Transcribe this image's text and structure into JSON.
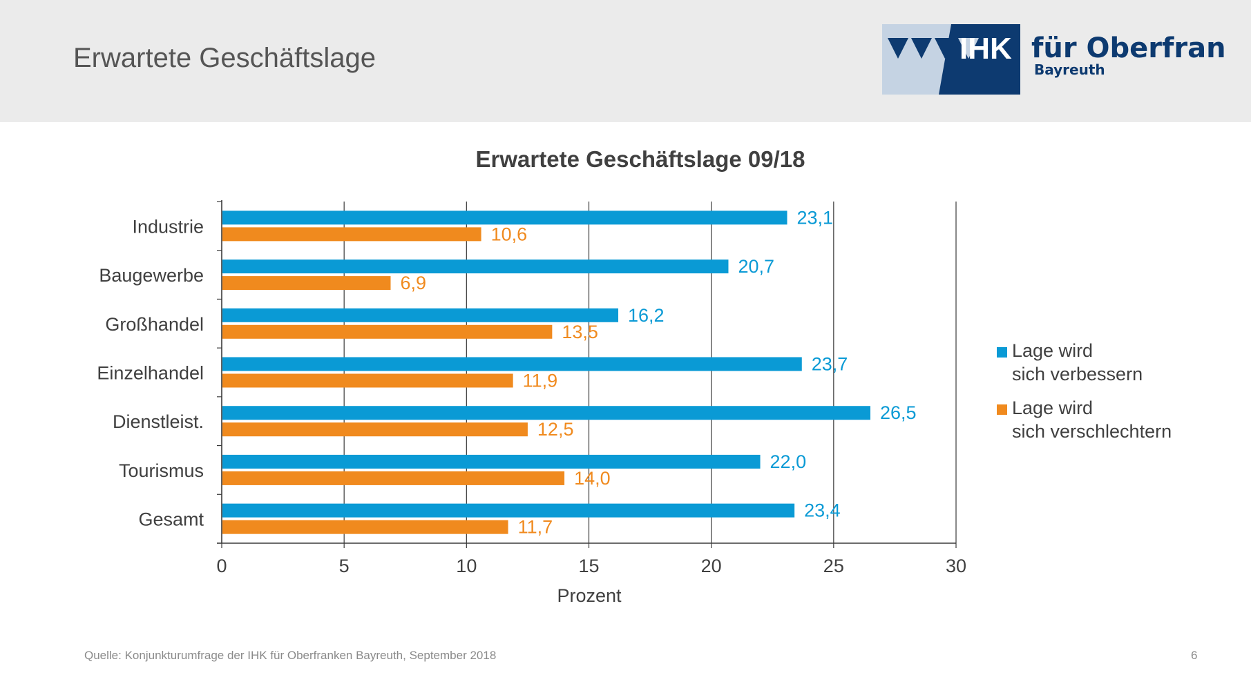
{
  "header": {
    "title": "Erwartete Geschäftslage",
    "logo": {
      "abbr": "IHK",
      "name": "für Oberfranken",
      "city": "Bayreuth"
    }
  },
  "chart_data": {
    "type": "bar",
    "orientation": "horizontal",
    "title": "Erwartete Geschäftslage 09/18",
    "xlabel": "Prozent",
    "ylabel": "",
    "xlim": [
      0,
      30
    ],
    "xticks": [
      "0",
      "5",
      "10",
      "15",
      "20",
      "25",
      "30"
    ],
    "categories": [
      "Industrie",
      "Baugewerbe",
      "Großhandel",
      "Einzelhandel",
      "Dienstleist.",
      "Tourismus",
      "Gesamt"
    ],
    "series": [
      {
        "name": "Lage wird sich verbessern",
        "legend_lines": [
          "Lage wird",
          "sich verbessern"
        ],
        "color": "#0a9ad5",
        "values": [
          23.1,
          20.7,
          16.2,
          23.7,
          26.5,
          22.0,
          23.4
        ],
        "labels": [
          "23,1",
          "20,7",
          "16,2",
          "23,7",
          "26,5",
          "22,0",
          "23,4"
        ]
      },
      {
        "name": "Lage wird sich verschlechtern",
        "legend_lines": [
          "Lage wird",
          "sich verschlechtern"
        ],
        "color": "#f08a1e",
        "values": [
          10.6,
          6.9,
          13.5,
          11.9,
          12.5,
          14.0,
          11.7
        ],
        "labels": [
          "10,6",
          "6,9",
          "13,5",
          "11,9",
          "12,5",
          "14,0",
          "11,7"
        ]
      }
    ],
    "grid": true,
    "legend": "right"
  },
  "footer": {
    "source": "Quelle: Konjunkturumfrage der IHK für Oberfranken Bayreuth, September 2018",
    "page": "6"
  }
}
